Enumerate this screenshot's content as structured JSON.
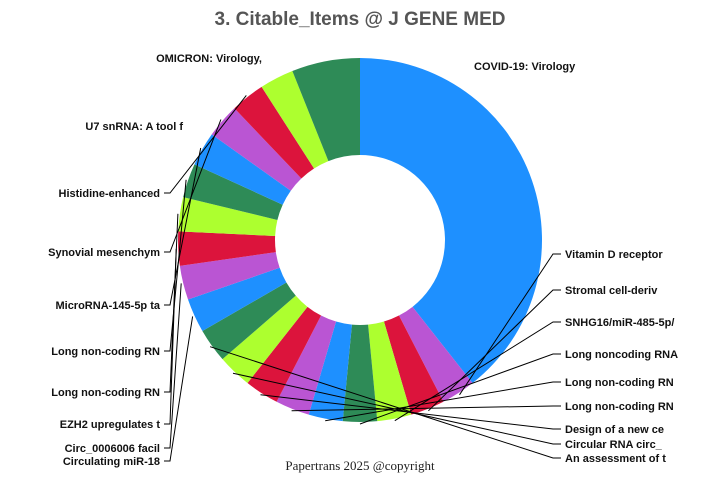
{
  "chart_data": {
    "type": "pie",
    "donut": true,
    "title": "3. Citable_Items @ J GENE MED",
    "footer": "Papertrans 2025 @copyright",
    "legend": "none",
    "slices": [
      {
        "label": "COVID-19: Virology",
        "value": 26,
        "color": "#1e90ff"
      },
      {
        "label": "Vitamin D receptor",
        "value": 2,
        "color": "#ba55d3"
      },
      {
        "label": "Stromal cell-deriv",
        "value": 2,
        "color": "#dc143c"
      },
      {
        "label": "SNHG16/miR-485-5p/",
        "value": 2,
        "color": "#adff2f"
      },
      {
        "label": "Long noncoding RNA",
        "value": 2,
        "color": "#2e8b57"
      },
      {
        "label": "Long non-coding RN",
        "value": 2,
        "color": "#1e90ff"
      },
      {
        "label": "Long non-coding RN",
        "value": 2,
        "color": "#ba55d3"
      },
      {
        "label": "Design of a new ce",
        "value": 2,
        "color": "#dc143c"
      },
      {
        "label": "Circular RNA circ_",
        "value": 2,
        "color": "#adff2f"
      },
      {
        "label": "An assessment of t",
        "value": 2,
        "color": "#2e8b57"
      },
      {
        "label": "Circulating miR-18",
        "value": 2,
        "color": "#1e90ff"
      },
      {
        "label": "Circ_0006006 facil",
        "value": 2,
        "color": "#ba55d3"
      },
      {
        "label": "EZH2 upregulates t",
        "value": 2,
        "color": "#dc143c"
      },
      {
        "label": "Long non-coding RN",
        "value": 2,
        "color": "#adff2f"
      },
      {
        "label": "Long non-coding RN",
        "value": 2,
        "color": "#2e8b57"
      },
      {
        "label": "MicroRNA-145-5p ta",
        "value": 2,
        "color": "#1e90ff"
      },
      {
        "label": "Synovial mesenchym",
        "value": 2,
        "color": "#ba55d3"
      },
      {
        "label": "Histidine-enhanced",
        "value": 2,
        "color": "#dc143c"
      },
      {
        "label": "U7 snRNA: A tool f",
        "value": 2,
        "color": "#adff2f"
      },
      {
        "label": "OMICRON: Virology,",
        "value": 4,
        "color": "#2e8b57"
      }
    ]
  }
}
